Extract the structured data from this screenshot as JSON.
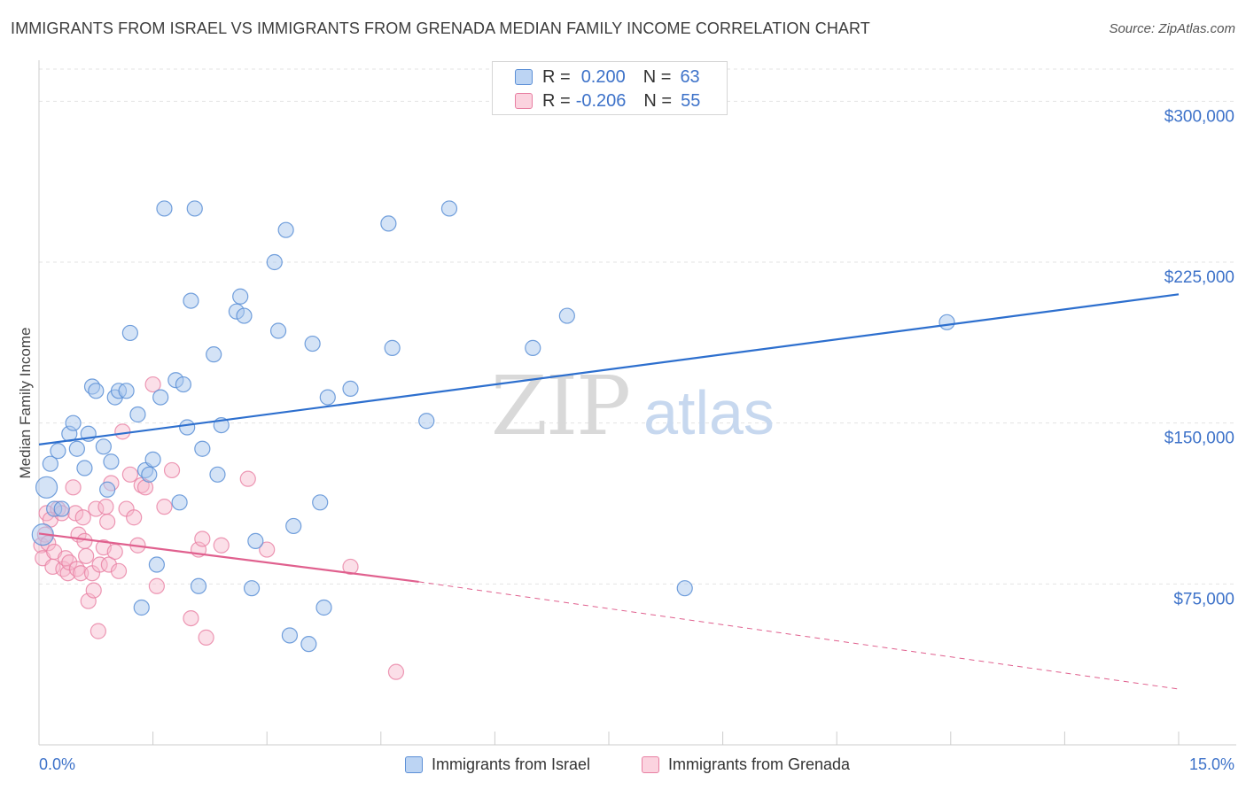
{
  "header": {
    "title": "IMMIGRANTS FROM ISRAEL VS IMMIGRANTS FROM GRENADA MEDIAN FAMILY INCOME CORRELATION CHART",
    "source": "Source: ZipAtlas.com"
  },
  "watermark": {
    "zip": "ZIP",
    "atlas": "atlas"
  },
  "legend": {
    "r_label": "R =",
    "n_label": "N =",
    "rows": [
      {
        "r_value": "0.200",
        "n_value": "63"
      },
      {
        "r_value": "-0.206",
        "n_value": "55"
      }
    ]
  },
  "bottom_legend": {
    "israel_label": "Immigrants from Israel",
    "grenada_label": "Immigrants from Grenada"
  },
  "colors": {
    "israel_fill": "#aac8ee",
    "israel_stroke": "#5b8fd6",
    "israel_line": "#2d6fce",
    "grenada_fill": "#f6b9cc",
    "grenada_stroke": "#e87fa2",
    "grenada_line": "#e0608e",
    "tick_text": "#3d72c9",
    "grid": "#e3e3e3"
  },
  "chart_data": {
    "type": "scatter",
    "title": "IMMIGRANTS FROM ISRAEL VS IMMIGRANTS FROM GRENADA MEDIAN FAMILY INCOME CORRELATION CHART",
    "xlabel": "",
    "ylabel": "Median Family Income",
    "xlim": [
      0,
      15
    ],
    "ylim": [
      0,
      315000
    ],
    "x_tick_labels": [
      "0.0%",
      "15.0%"
    ],
    "y_ticks": [
      75000,
      150000,
      225000,
      300000
    ],
    "y_tick_labels": [
      "$75,000",
      "$150,000",
      "$225,000",
      "$300,000"
    ],
    "grid": "horizontal dashed",
    "legend_position": "top-center",
    "series": [
      {
        "name": "Immigrants from Israel",
        "r": 0.2,
        "n": 63,
        "points": [
          [
            0.05,
            98000
          ],
          [
            0.1,
            120000
          ],
          [
            0.15,
            131000
          ],
          [
            0.2,
            110000
          ],
          [
            0.25,
            137000
          ],
          [
            0.3,
            110000
          ],
          [
            0.4,
            145000
          ],
          [
            0.45,
            150000
          ],
          [
            0.5,
            138000
          ],
          [
            0.6,
            129000
          ],
          [
            0.65,
            145000
          ],
          [
            0.7,
            167000
          ],
          [
            0.75,
            165000
          ],
          [
            0.85,
            139000
          ],
          [
            0.9,
            119000
          ],
          [
            0.95,
            132000
          ],
          [
            1.0,
            162000
          ],
          [
            1.05,
            165000
          ],
          [
            1.15,
            165000
          ],
          [
            1.2,
            192000
          ],
          [
            1.3,
            154000
          ],
          [
            1.35,
            64000
          ],
          [
            1.4,
            128000
          ],
          [
            1.45,
            126000
          ],
          [
            1.5,
            133000
          ],
          [
            1.55,
            84000
          ],
          [
            1.6,
            162000
          ],
          [
            1.65,
            250000
          ],
          [
            1.8,
            170000
          ],
          [
            1.85,
            113000
          ],
          [
            1.9,
            168000
          ],
          [
            1.95,
            148000
          ],
          [
            2.0,
            207000
          ],
          [
            2.05,
            250000
          ],
          [
            2.1,
            74000
          ],
          [
            2.15,
            138000
          ],
          [
            2.3,
            182000
          ],
          [
            2.35,
            126000
          ],
          [
            2.4,
            149000
          ],
          [
            2.6,
            202000
          ],
          [
            2.65,
            209000
          ],
          [
            2.7,
            200000
          ],
          [
            2.8,
            73000
          ],
          [
            2.85,
            95000
          ],
          [
            3.1,
            225000
          ],
          [
            3.15,
            193000
          ],
          [
            3.25,
            240000
          ],
          [
            3.3,
            51000
          ],
          [
            3.35,
            102000
          ],
          [
            3.55,
            47000
          ],
          [
            3.6,
            187000
          ],
          [
            3.7,
            113000
          ],
          [
            3.75,
            64000
          ],
          [
            3.8,
            162000
          ],
          [
            4.1,
            166000
          ],
          [
            4.6,
            243000
          ],
          [
            4.65,
            185000
          ],
          [
            5.1,
            151000
          ],
          [
            5.4,
            250000
          ],
          [
            6.5,
            185000
          ],
          [
            6.95,
            200000
          ],
          [
            8.5,
            73000
          ],
          [
            11.95,
            197000
          ]
        ]
      },
      {
        "name": "Immigrants from Grenada",
        "r": -0.206,
        "n": 55,
        "points": [
          [
            0.03,
            93000
          ],
          [
            0.05,
            87000
          ],
          [
            0.08,
            98000
          ],
          [
            0.1,
            108000
          ],
          [
            0.12,
            94000
          ],
          [
            0.15,
            105000
          ],
          [
            0.18,
            83000
          ],
          [
            0.2,
            90000
          ],
          [
            0.25,
            110000
          ],
          [
            0.3,
            108000
          ],
          [
            0.32,
            82000
          ],
          [
            0.35,
            87000
          ],
          [
            0.38,
            80000
          ],
          [
            0.4,
            85000
          ],
          [
            0.45,
            120000
          ],
          [
            0.48,
            108000
          ],
          [
            0.5,
            82000
          ],
          [
            0.52,
            98000
          ],
          [
            0.55,
            80000
          ],
          [
            0.58,
            106000
          ],
          [
            0.6,
            95000
          ],
          [
            0.62,
            88000
          ],
          [
            0.65,
            67000
          ],
          [
            0.7,
            80000
          ],
          [
            0.72,
            72000
          ],
          [
            0.75,
            110000
          ],
          [
            0.78,
            53000
          ],
          [
            0.8,
            84000
          ],
          [
            0.85,
            92000
          ],
          [
            0.88,
            111000
          ],
          [
            0.9,
            104000
          ],
          [
            0.92,
            84000
          ],
          [
            0.95,
            122000
          ],
          [
            1.0,
            90000
          ],
          [
            1.05,
            81000
          ],
          [
            1.1,
            146000
          ],
          [
            1.15,
            110000
          ],
          [
            1.2,
            126000
          ],
          [
            1.25,
            106000
          ],
          [
            1.3,
            93000
          ],
          [
            1.35,
            121000
          ],
          [
            1.4,
            120000
          ],
          [
            1.5,
            168000
          ],
          [
            1.55,
            74000
          ],
          [
            1.65,
            111000
          ],
          [
            1.75,
            128000
          ],
          [
            2.0,
            59000
          ],
          [
            2.1,
            91000
          ],
          [
            2.15,
            96000
          ],
          [
            2.2,
            50000
          ],
          [
            2.4,
            93000
          ],
          [
            2.75,
            124000
          ],
          [
            3.0,
            91000
          ],
          [
            4.1,
            83000
          ],
          [
            4.7,
            34000
          ]
        ]
      }
    ],
    "trend_lines": [
      {
        "series": "Immigrants from Israel",
        "x": [
          0,
          15
        ],
        "y": [
          140000,
          210000
        ],
        "style": "solid"
      },
      {
        "series": "Immigrants from Grenada",
        "x": [
          0,
          5
        ],
        "y": [
          98500,
          76000
        ],
        "style": "solid"
      },
      {
        "series": "Immigrants from Grenada",
        "x": [
          5,
          15
        ],
        "y": [
          76000,
          26000
        ],
        "style": "dashed"
      }
    ]
  }
}
